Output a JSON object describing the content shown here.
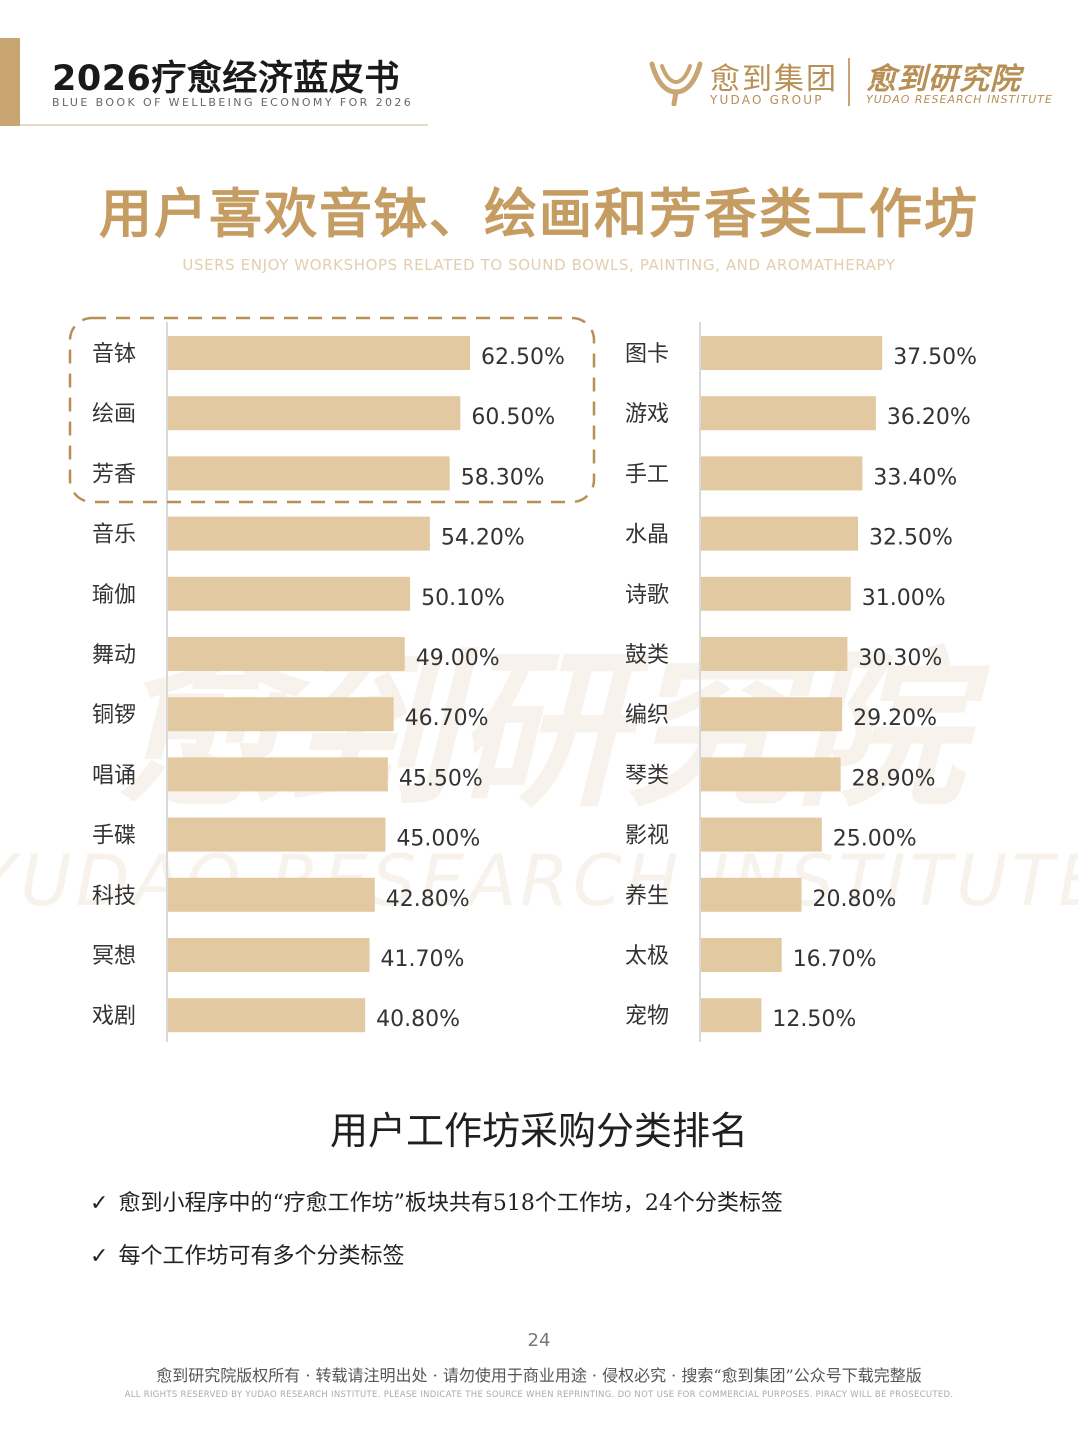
{
  "header": {
    "book_title": "2026疗愈经济蓝皮书",
    "book_subtitle": "BLUE BOOK OF WELLBEING ECONOMY FOR 2026",
    "logo_name": "愈到集团",
    "logo_en": "YUDAO GROUP",
    "institute_name": "愈到研究院",
    "institute_en": "YUDAO RESEARCH INSTITUTE"
  },
  "title": "用户喜欢音钵、绘画和芳香类工作坊",
  "subtitle": "USERS ENJOY WORKSHOPS RELATED TO SOUND BOWLS, PAINTING, AND AROMATHERAPY",
  "watermark": {
    "cn": "愈到研究院",
    "en": "YUDAO RESEARCH INSTITUTE"
  },
  "chart_data": {
    "type": "bar",
    "orientation": "horizontal",
    "title": "用户工作坊采购分类排名",
    "xlabel": "",
    "ylabel": "",
    "xlim": [
      0,
      62.5
    ],
    "grid": false,
    "legend": "none",
    "bar_color": "#e3c9a1",
    "highlight_color": "#b88f55",
    "highlighted": [
      "音钵",
      "绘画",
      "芳香"
    ],
    "categories": [
      "音钵",
      "绘画",
      "芳香",
      "音乐",
      "瑜伽",
      "舞动",
      "铜锣",
      "唱诵",
      "手碟",
      "科技",
      "冥想",
      "戏剧",
      "图卡",
      "游戏",
      "手工",
      "水晶",
      "诗歌",
      "鼓类",
      "编织",
      "琴类",
      "影视",
      "养生",
      "太极",
      "宠物"
    ],
    "values": [
      62.5,
      60.5,
      58.3,
      54.2,
      50.1,
      49.0,
      46.7,
      45.5,
      45.0,
      42.8,
      41.7,
      40.8,
      37.5,
      36.2,
      33.4,
      32.5,
      31.0,
      30.3,
      29.2,
      28.9,
      25.0,
      20.8,
      16.7,
      12.5
    ],
    "value_labels": [
      "62.50%",
      "60.50%",
      "58.30%",
      "54.20%",
      "50.10%",
      "49.00%",
      "46.70%",
      "45.50%",
      "45.00%",
      "42.80%",
      "41.70%",
      "40.80%",
      "37.50%",
      "36.20%",
      "33.40%",
      "32.50%",
      "31.00%",
      "30.30%",
      "29.20%",
      "28.90%",
      "25.00%",
      "20.80%",
      "16.70%",
      "12.50%"
    ],
    "unit": "%"
  },
  "notes": [
    "愈到小程序中的“疗愈工作坊”板块共有518个工作坊，24个分类标签",
    "每个工作坊可有多个分类标签"
  ],
  "check_mark": "✓",
  "page_number": "24",
  "footer": {
    "cn": "愈到研究院版权所有 · 转载请注明出处 · 请勿使用于商业用途 · 侵权必究 · 搜索“愈到集团”公众号下载完整版",
    "en": "ALL RIGHTS RESERVED BY YUDAO RESEARCH INSTITUTE. PLEASE INDICATE THE SOURCE WHEN REPRINTING. DO NOT USE FOR COMMERCIAL PURPOSES. PIRACY WILL BE PROSECUTED."
  }
}
